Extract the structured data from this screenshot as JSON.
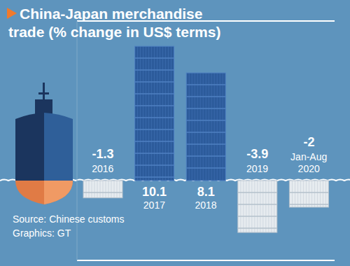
{
  "chart_data": {
    "type": "bar",
    "title": "China-Japan merchandise trade (% change in US$ terms)",
    "categories": [
      "2016",
      "2017",
      "2018",
      "2019",
      "Jan-Aug 2020"
    ],
    "values": [
      -1.3,
      10.1,
      8.1,
      -3.9,
      -2
    ],
    "colors": [
      "#e6ebef",
      "#2c5b9b",
      "#2c5b9b",
      "#e6ebef",
      "#e6ebef"
    ],
    "ylim": [
      -6,
      12
    ],
    "yticks": [
      0
    ],
    "grid": true,
    "data_labels": true,
    "tick_labels": "x",
    "annotations": [
      "Source: Chinese customs",
      "Graphics: GT"
    ]
  }
}
